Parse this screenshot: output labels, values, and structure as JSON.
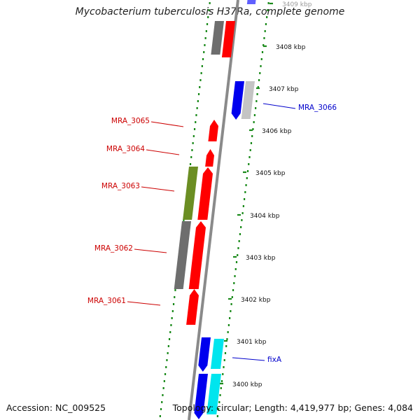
{
  "title": "Mycobacterium tuberculosis H37Ra, complete genome",
  "accession": "Accession: NC_009525",
  "stats": "Topology: circular; Length: 4,419,977 bp; Genes: 4,084",
  "colors": {
    "backbone": "#8a8a8a",
    "dotted_ring": "#1a8a1a",
    "gene_red": "#ff0000",
    "gene_blue": "#0000ee",
    "gene_cyan": "#00e5ee",
    "gene_gray": "#6e6e6e",
    "gene_lightgray": "#c4c4c4",
    "gene_olive": "#6b8e23",
    "label_red": "#cc0000",
    "label_blue": "#0000cc"
  },
  "kbp_ticks": [
    "3409 kbp",
    "3408 kbp",
    "3407 kbp",
    "3406 kbp",
    "3405 kbp",
    "3404 kbp",
    "3403 kbp",
    "3402 kbp",
    "3401 kbp",
    "3400 kbp"
  ],
  "gene_labels": [
    {
      "text": "MRA_3065",
      "color": "red"
    },
    {
      "text": "MRA_3064",
      "color": "red"
    },
    {
      "text": "MRA_3063",
      "color": "red"
    },
    {
      "text": "MRA_3062",
      "color": "red"
    },
    {
      "text": "MRA_3061",
      "color": "red"
    },
    {
      "text": "MRA_3066",
      "color": "blue"
    },
    {
      "text": "fixA",
      "color": "blue"
    }
  ]
}
